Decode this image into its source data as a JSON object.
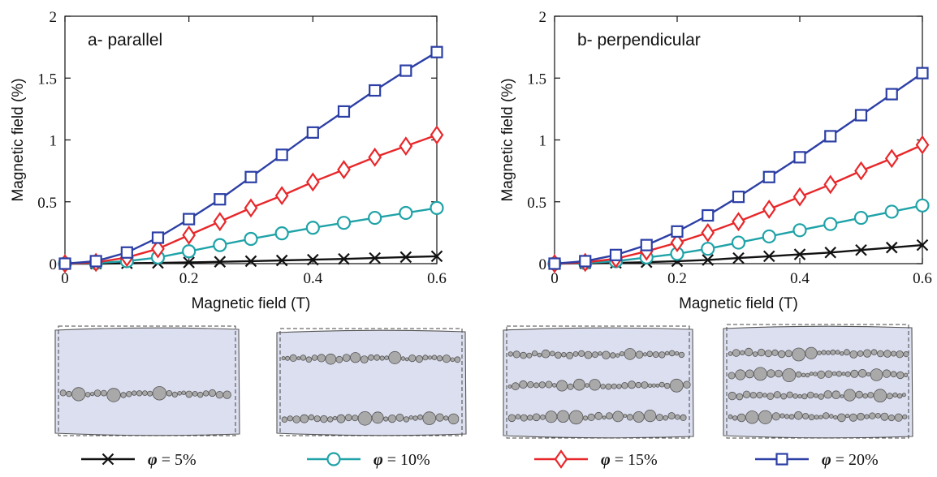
{
  "chart_data": [
    {
      "type": "line",
      "title": "a- parallel",
      "xlabel": "Magnetic field (T)",
      "ylabel": "Magnetic field (%)",
      "xlim": [
        0,
        0.6
      ],
      "ylim": [
        0,
        2
      ],
      "xticks": [
        "0",
        "0.2",
        "0.4",
        "0.6"
      ],
      "yticks": [
        "0",
        "0.5",
        "1",
        "1.5",
        "2"
      ],
      "grid": false,
      "x": [
        0,
        0.05,
        0.1,
        0.15,
        0.2,
        0.25,
        0.3,
        0.35,
        0.4,
        0.45,
        0.5,
        0.55,
        0.6
      ],
      "series": [
        {
          "name": "φ = 5%",
          "color": "#111111",
          "marker": "x",
          "values": [
            0,
            0,
            0.003,
            0.006,
            0.01,
            0.015,
            0.02,
            0.026,
            0.032,
            0.038,
            0.045,
            0.053,
            0.06
          ]
        },
        {
          "name": "φ = 10%",
          "color": "#1fa3a8",
          "marker": "circle",
          "values": [
            0,
            0.005,
            0.02,
            0.05,
            0.1,
            0.15,
            0.2,
            0.245,
            0.29,
            0.33,
            0.37,
            0.41,
            0.45
          ]
        },
        {
          "name": "φ = 15%",
          "color": "#e8272a",
          "marker": "diamond",
          "values": [
            0,
            0.01,
            0.05,
            0.12,
            0.23,
            0.34,
            0.45,
            0.55,
            0.66,
            0.76,
            0.86,
            0.95,
            1.04
          ]
        },
        {
          "name": "φ = 20%",
          "color": "#2c3fa5",
          "marker": "square",
          "values": [
            0,
            0.02,
            0.09,
            0.21,
            0.36,
            0.52,
            0.7,
            0.88,
            1.06,
            1.23,
            1.4,
            1.56,
            1.71
          ]
        }
      ]
    },
    {
      "type": "line",
      "title": "b- perpendicular",
      "xlabel": "Magnetic field (T)",
      "ylabel": "Magnetic field (%)",
      "xlim": [
        0,
        0.6
      ],
      "ylim": [
        0,
        2
      ],
      "xticks": [
        "0",
        "0.2",
        "0.4",
        "0.6"
      ],
      "yticks": [
        "0",
        "0.5",
        "1",
        "1.5",
        "2"
      ],
      "grid": false,
      "x": [
        0,
        0.05,
        0.1,
        0.15,
        0.2,
        0.25,
        0.3,
        0.35,
        0.4,
        0.45,
        0.5,
        0.55,
        0.6
      ],
      "series": [
        {
          "name": "φ = 5%",
          "color": "#111111",
          "marker": "x",
          "values": [
            0,
            0.002,
            0.006,
            0.012,
            0.02,
            0.03,
            0.045,
            0.06,
            0.075,
            0.09,
            0.11,
            0.13,
            0.15
          ]
        },
        {
          "name": "φ = 10%",
          "color": "#1fa3a8",
          "marker": "circle",
          "values": [
            0,
            0.005,
            0.02,
            0.05,
            0.08,
            0.12,
            0.17,
            0.22,
            0.27,
            0.32,
            0.37,
            0.42,
            0.47
          ]
        },
        {
          "name": "φ = 15%",
          "color": "#e8272a",
          "marker": "diamond",
          "values": [
            0,
            0.01,
            0.04,
            0.1,
            0.17,
            0.25,
            0.34,
            0.44,
            0.54,
            0.64,
            0.75,
            0.85,
            0.96
          ]
        },
        {
          "name": "φ = 20%",
          "color": "#2c3fa5",
          "marker": "square",
          "values": [
            0,
            0.02,
            0.07,
            0.15,
            0.26,
            0.39,
            0.54,
            0.7,
            0.86,
            1.03,
            1.2,
            1.37,
            1.54
          ]
        }
      ]
    }
  ],
  "legend": [
    {
      "symbol": "φ",
      "value": "= 5",
      "unit": "%",
      "color": "#111111",
      "marker": "x"
    },
    {
      "symbol": "φ",
      "value": "= 10",
      "unit": "%",
      "color": "#1fa3a8",
      "marker": "circle"
    },
    {
      "symbol": "φ",
      "value": "= 15",
      "unit": "%",
      "color": "#e8272a",
      "marker": "diamond"
    },
    {
      "symbol": "φ",
      "value": "= 20",
      "unit": "%",
      "color": "#2c3fa5",
      "marker": "square"
    }
  ],
  "illustrations": [
    {
      "concentration": "5%",
      "chains": 1
    },
    {
      "concentration": "10%",
      "chains": 2
    },
    {
      "concentration": "15%",
      "chains": 3
    },
    {
      "concentration": "20%",
      "chains": 4
    }
  ],
  "colors": {
    "panel_fill": "#dcdff0",
    "particle": "#a9a9a9"
  }
}
